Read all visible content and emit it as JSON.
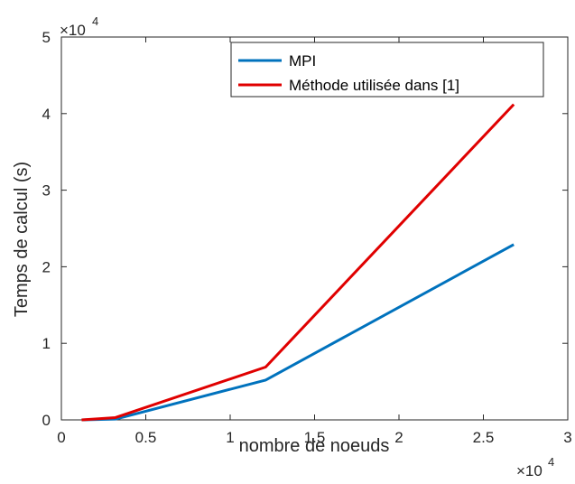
{
  "chart_data": {
    "type": "line",
    "xlabel": "nombre de noeuds",
    "ylabel": "Temps de calcul (s)",
    "x_exponent_label": "×10",
    "x_exponent_power": "4",
    "y_exponent_label": "×10",
    "y_exponent_power": "4",
    "xlim": [
      0,
      30000
    ],
    "ylim": [
      0,
      50000
    ],
    "x_ticks": [
      0,
      5000,
      10000,
      15000,
      20000,
      25000,
      30000
    ],
    "x_tick_labels": [
      "0",
      "0.5",
      "1",
      "1.5",
      "2",
      "2.5",
      "3"
    ],
    "y_ticks": [
      0,
      10000,
      20000,
      30000,
      40000,
      50000
    ],
    "y_tick_labels": [
      "0",
      "1",
      "2",
      "3",
      "4",
      "5"
    ],
    "grid": false,
    "legend_position": "top-right",
    "series": [
      {
        "name": "MPI",
        "color": "#0072BD",
        "x": [
          1200,
          3200,
          12100,
          26800
        ],
        "y": [
          0,
          100,
          5200,
          22900
        ]
      },
      {
        "name": "Méthode utilisée dans [1]",
        "color": "#E00000",
        "x": [
          1200,
          3200,
          12100,
          26800
        ],
        "y": [
          0,
          300,
          6900,
          41200
        ]
      }
    ]
  }
}
